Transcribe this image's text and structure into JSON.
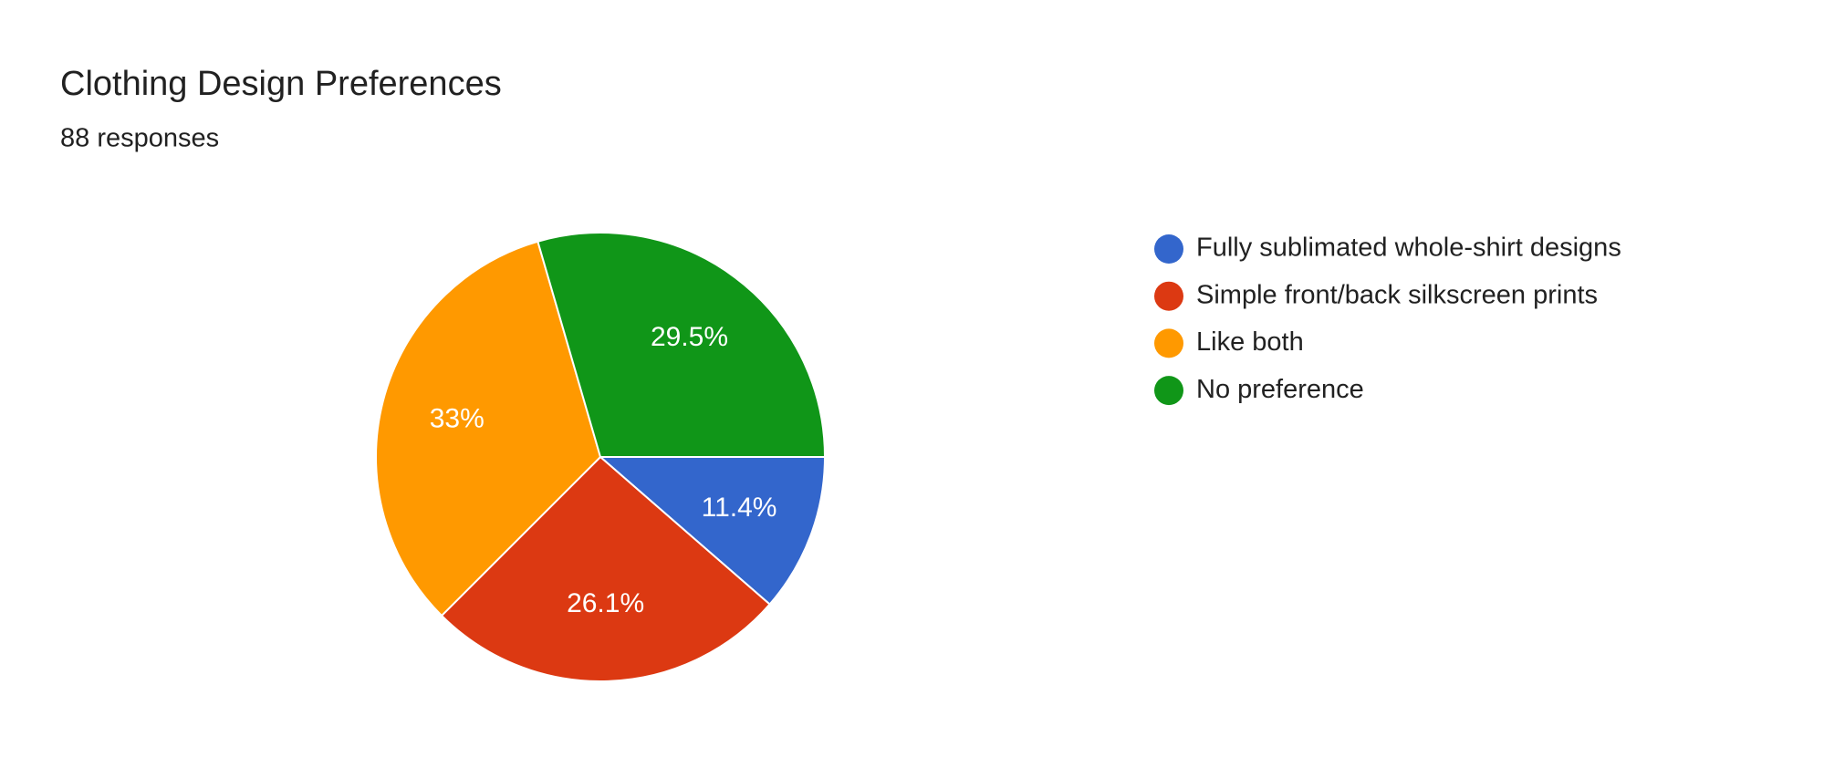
{
  "chart_data": {
    "type": "pie",
    "title": "Clothing Design Preferences",
    "subtitle": "88 responses",
    "categories": [
      "Fully sublimated whole-shirt designs",
      "Simple front/back silkscreen prints",
      "Like both",
      "No preference"
    ],
    "values": [
      11.4,
      26.1,
      33,
      29.5
    ],
    "value_labels": [
      "11.4%",
      "26.1%",
      "33%",
      "29.5%"
    ],
    "colors": [
      "#3366cc",
      "#dc3912",
      "#ff9900",
      "#109618"
    ]
  }
}
